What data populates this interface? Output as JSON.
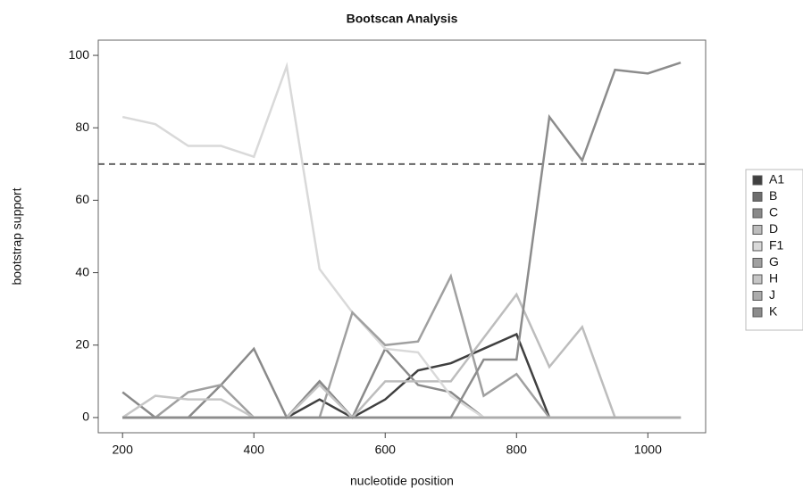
{
  "chart_data": {
    "type": "line",
    "title": "Bootscan Analysis",
    "x_label": "nucleotide position",
    "y_label": "bootstrap support",
    "x": [
      200,
      250,
      300,
      350,
      400,
      450,
      500,
      550,
      600,
      650,
      700,
      750,
      800,
      850,
      900,
      950,
      1000,
      1050
    ],
    "xlim": [
      163,
      1088
    ],
    "xticks": [
      200,
      400,
      600,
      800,
      1000
    ],
    "ylim": [
      -4.2,
      104.2
    ],
    "yticks": [
      0,
      20,
      40,
      60,
      80,
      100
    ],
    "threshold": 70,
    "legend": "right",
    "series": [
      {
        "name": "A1",
        "color": "#404040",
        "values": [
          0,
          0,
          0,
          0,
          0,
          0,
          5,
          0,
          5,
          13,
          15,
          19,
          23,
          0,
          0,
          0,
          0,
          0
        ]
      },
      {
        "name": "B",
        "color": "#6e6e6e",
        "values": [
          0,
          0,
          0,
          0,
          0,
          0,
          10,
          0,
          0,
          0,
          0,
          0,
          0,
          0,
          0,
          0,
          0,
          0
        ]
      },
      {
        "name": "C",
        "color": "#8a8a8a",
        "values": [
          7,
          0,
          0,
          9,
          19,
          0,
          10,
          0,
          19,
          9,
          7,
          0,
          0,
          0,
          0,
          0,
          0,
          0
        ]
      },
      {
        "name": "D",
        "color": "#bdbdbd",
        "values": [
          0,
          0,
          0,
          0,
          0,
          0,
          0,
          0,
          10,
          10,
          10,
          22,
          34,
          14,
          25,
          0,
          0,
          0
        ]
      },
      {
        "name": "F1",
        "color": "#d9d9d9",
        "values": [
          83,
          81,
          75,
          75,
          72,
          97,
          41,
          29,
          19,
          18,
          6,
          0,
          0,
          0,
          0,
          0,
          0,
          0
        ]
      },
      {
        "name": "G",
        "color": "#a0a0a0",
        "values": [
          0,
          0,
          7,
          9,
          0,
          0,
          0,
          29,
          20,
          21,
          39,
          6,
          12,
          0,
          0,
          0,
          0,
          0
        ]
      },
      {
        "name": "H",
        "color": "#c6c6c6",
        "values": [
          0,
          6,
          5,
          5,
          0,
          0,
          9,
          0,
          0,
          0,
          0,
          0,
          0,
          0,
          0,
          0,
          0,
          0
        ]
      },
      {
        "name": "J",
        "color": "#acacac",
        "values": [
          0,
          0,
          0,
          0,
          0,
          0,
          0,
          0,
          0,
          0,
          0,
          0,
          0,
          0,
          0,
          0,
          0,
          0
        ]
      },
      {
        "name": "K",
        "color": "#8c8c8c",
        "values": [
          0,
          0,
          0,
          0,
          0,
          0,
          0,
          0,
          0,
          0,
          0,
          16,
          16,
          83,
          71,
          96,
          95,
          98
        ]
      }
    ]
  }
}
